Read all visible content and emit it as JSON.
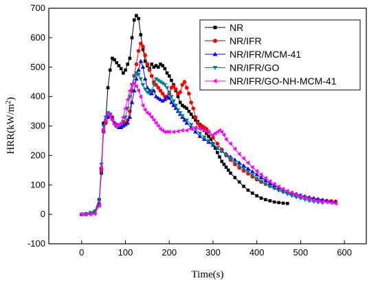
{
  "chart_data": {
    "type": "line",
    "xlabel": "Time(s)",
    "ylabel_base": "HRR(kW/m",
    "ylabel_sup": "2",
    "ylabel_end": ")",
    "xlim": [
      -75,
      650
    ],
    "ylim": [
      -100,
      700
    ],
    "xticks": [
      0,
      100,
      200,
      300,
      400,
      500,
      600
    ],
    "yticks": [
      -100,
      0,
      100,
      200,
      300,
      400,
      500,
      600,
      700
    ],
    "legend_position": "top-right",
    "series": [
      {
        "name": "NR",
        "color": "#000000",
        "marker": "square",
        "x": [
          0,
          10,
          20,
          30,
          40,
          45,
          50,
          55,
          60,
          65,
          70,
          75,
          80,
          85,
          90,
          95,
          100,
          105,
          110,
          115,
          120,
          125,
          130,
          135,
          140,
          145,
          150,
          155,
          160,
          165,
          170,
          175,
          180,
          185,
          190,
          195,
          200,
          205,
          210,
          215,
          220,
          225,
          230,
          235,
          240,
          245,
          250,
          255,
          260,
          265,
          270,
          275,
          280,
          285,
          290,
          295,
          300,
          305,
          310,
          315,
          320,
          325,
          330,
          335,
          340,
          350,
          360,
          370,
          380,
          390,
          400,
          410,
          420,
          430,
          440,
          450,
          460,
          470
        ],
        "y": [
          0,
          2,
          5,
          10,
          50,
          140,
          310,
          320,
          430,
          490,
          530,
          525,
          515,
          505,
          495,
          480,
          490,
          510,
          530,
          600,
          660,
          675,
          665,
          610,
          560,
          520,
          505,
          495,
          510,
          500,
          505,
          500,
          510,
          505,
          495,
          480,
          470,
          455,
          440,
          420,
          400,
          380,
          370,
          365,
          360,
          350,
          340,
          330,
          320,
          315,
          305,
          295,
          285,
          275,
          265,
          255,
          240,
          225,
          210,
          195,
          180,
          170,
          160,
          150,
          140,
          125,
          110,
          95,
          82,
          72,
          63,
          55,
          50,
          46,
          42,
          40,
          38,
          37
        ]
      },
      {
        "name": "NR/IFR",
        "color": "#ff0000",
        "marker": "circle",
        "x": [
          0,
          10,
          20,
          30,
          40,
          45,
          50,
          55,
          60,
          65,
          70,
          75,
          80,
          85,
          90,
          95,
          100,
          105,
          110,
          115,
          120,
          125,
          130,
          135,
          140,
          145,
          150,
          155,
          160,
          165,
          170,
          175,
          180,
          185,
          190,
          195,
          200,
          205,
          210,
          215,
          220,
          225,
          230,
          235,
          240,
          245,
          250,
          255,
          260,
          265,
          270,
          275,
          280,
          285,
          290,
          300,
          310,
          320,
          330,
          340,
          350,
          360,
          370,
          380,
          390,
          400,
          410,
          420,
          430,
          440,
          450,
          460,
          470,
          480,
          490,
          500,
          510,
          520,
          530,
          540,
          550,
          560,
          570,
          580
        ],
        "y": [
          0,
          0,
          2,
          5,
          30,
          150,
          280,
          310,
          330,
          340,
          330,
          310,
          305,
          300,
          300,
          305,
          310,
          320,
          350,
          420,
          470,
          510,
          555,
          580,
          570,
          540,
          510,
          490,
          470,
          450,
          440,
          430,
          420,
          410,
          400,
          395,
          410,
          430,
          435,
          425,
          410,
          415,
          440,
          450,
          430,
          410,
          380,
          360,
          330,
          310,
          300,
          300,
          295,
          290,
          280,
          260,
          240,
          220,
          200,
          185,
          170,
          158,
          148,
          138,
          128,
          118,
          110,
          103,
          96,
          90,
          84,
          78,
          73,
          68,
          64,
          60,
          57,
          54,
          52,
          50,
          48,
          46,
          45,
          44
        ]
      },
      {
        "name": "NR/IFR/MCM-41",
        "color": "#0000ff",
        "marker": "triangle-up",
        "x": [
          0,
          10,
          20,
          30,
          40,
          45,
          50,
          55,
          60,
          65,
          70,
          75,
          80,
          85,
          90,
          95,
          100,
          105,
          110,
          115,
          120,
          125,
          130,
          135,
          140,
          145,
          150,
          155,
          160,
          165,
          170,
          175,
          180,
          185,
          190,
          195,
          200,
          205,
          210,
          215,
          220,
          225,
          230,
          235,
          240,
          250,
          260,
          270,
          280,
          290,
          300,
          310,
          320,
          330,
          340,
          350,
          360,
          370,
          380,
          390,
          400,
          410,
          420,
          430,
          440,
          450,
          460,
          470,
          480,
          490,
          500,
          510,
          520,
          530,
          540,
          550,
          560,
          570,
          580
        ],
        "y": [
          0,
          2,
          5,
          8,
          40,
          160,
          290,
          320,
          330,
          335,
          325,
          310,
          300,
          295,
          295,
          300,
          305,
          310,
          330,
          380,
          420,
          460,
          490,
          520,
          500,
          460,
          430,
          420,
          410,
          420,
          400,
          395,
          390,
          385,
          390,
          400,
          395,
          380,
          370,
          360,
          350,
          340,
          330,
          320,
          310,
          295,
          280,
          265,
          255,
          245,
          235,
          225,
          215,
          205,
          195,
          185,
          175,
          165,
          155,
          145,
          135,
          125,
          115,
          105,
          98,
          90,
          84,
          78,
          73,
          69,
          65,
          61,
          58,
          55,
          52,
          49,
          46,
          43,
          40
        ]
      },
      {
        "name": "NR/IFR/GO",
        "color": "#008080",
        "marker": "triangle-down",
        "x": [
          0,
          10,
          20,
          30,
          40,
          45,
          50,
          55,
          60,
          65,
          70,
          75,
          80,
          85,
          90,
          95,
          100,
          105,
          110,
          115,
          120,
          125,
          130,
          135,
          140,
          145,
          150,
          155,
          160,
          165,
          170,
          175,
          180,
          185,
          190,
          195,
          200,
          205,
          210,
          215,
          220,
          225,
          230,
          240,
          250,
          260,
          270,
          280,
          290,
          300,
          310,
          320,
          330,
          340,
          350,
          360,
          370,
          380,
          390,
          400,
          410,
          420,
          430,
          440,
          450,
          460,
          470,
          480,
          490,
          500,
          510,
          520,
          530,
          540,
          550
        ],
        "y": [
          0,
          2,
          5,
          8,
          45,
          170,
          300,
          330,
          345,
          340,
          320,
          305,
          300,
          300,
          305,
          315,
          330,
          360,
          400,
          440,
          470,
          480,
          475,
          460,
          440,
          425,
          415,
          410,
          420,
          440,
          460,
          455,
          450,
          445,
          440,
          430,
          415,
          400,
          385,
          370,
          355,
          345,
          335,
          320,
          305,
          290,
          275,
          262,
          250,
          238,
          226,
          214,
          202,
          190,
          178,
          166,
          155,
          144,
          133,
          122,
          112,
          103,
          95,
          88,
          81,
          75,
          69,
          63,
          58,
          54,
          50,
          46,
          43,
          41,
          39
        ]
      },
      {
        "name": "NR/IFR/GO-NH-MCM-41",
        "color": "#ff00ff",
        "marker": "triangle-left",
        "x": [
          0,
          10,
          20,
          30,
          40,
          45,
          50,
          55,
          60,
          65,
          70,
          75,
          80,
          85,
          90,
          95,
          100,
          105,
          110,
          115,
          120,
          125,
          130,
          135,
          140,
          145,
          150,
          155,
          160,
          165,
          170,
          175,
          180,
          185,
          190,
          195,
          200,
          210,
          220,
          230,
          240,
          250,
          260,
          270,
          280,
          290,
          300,
          305,
          310,
          315,
          320,
          325,
          330,
          340,
          350,
          360,
          370,
          380,
          390,
          400,
          410,
          420,
          430,
          440,
          450,
          460,
          470,
          480,
          490,
          500,
          510,
          520,
          530,
          540,
          550,
          560,
          570,
          580
        ],
        "y": [
          0,
          0,
          0,
          2,
          30,
          160,
          290,
          320,
          340,
          335,
          320,
          305,
          300,
          305,
          310,
          330,
          360,
          390,
          420,
          440,
          445,
          435,
          420,
          400,
          370,
          355,
          345,
          340,
          330,
          320,
          310,
          300,
          290,
          285,
          280,
          280,
          280,
          280,
          282,
          285,
          285,
          290,
          295,
          290,
          285,
          280,
          270,
          275,
          280,
          285,
          280,
          270,
          255,
          240,
          222,
          205,
          190,
          175,
          160,
          147,
          135,
          123,
          112,
          103,
          94,
          86,
          79,
          73,
          67,
          62,
          57,
          53,
          49,
          46,
          43,
          41,
          39,
          37
        ]
      }
    ]
  }
}
